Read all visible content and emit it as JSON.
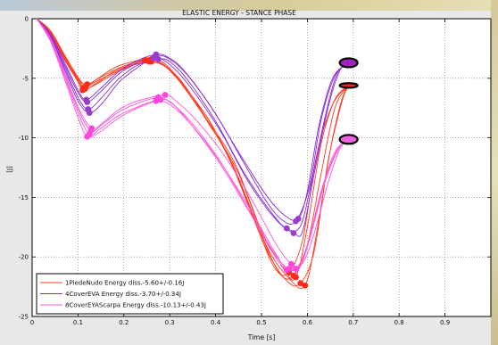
{
  "chart_data": {
    "type": "line",
    "title": "ELASTIC ENERGY - STANCE PHASE",
    "xlabel": "Time [s]",
    "ylabel": "[J]",
    "xlim": [
      0,
      1.0
    ],
    "ylim": [
      -25,
      0
    ],
    "xticks": [
      0,
      0.1,
      0.2,
      0.3,
      0.4,
      0.5,
      0.6,
      0.7,
      0.8,
      0.9
    ],
    "xtick_labels": [
      "0",
      "0.1",
      "0.2",
      "0.3",
      "0.4",
      "0.5",
      "0.6",
      "0.7",
      "0.8",
      "0.9"
    ],
    "yticks": [
      0,
      -5,
      -10,
      -15,
      -20,
      -25
    ],
    "ytick_labels": [
      "0",
      "-5",
      "-10",
      "-15",
      "-20",
      "-25"
    ],
    "grid": "dotted",
    "legend_position": "bottom-left",
    "series": [
      {
        "name": "1PiedeNudo Energy diss.-5.60+/-0.16J",
        "color": "#ff3b1f",
        "marker_color": "#ff2a1a",
        "end_marker_color": "#ff2020",
        "mean_end": [
          0.69,
          -5.6
        ],
        "trials": [
          [
            [
              0.01,
              0
            ],
            [
              0.04,
              -1.2
            ],
            [
              0.07,
              -3.2
            ],
            [
              0.1,
              -5.0
            ],
            [
              0.115,
              -5.9
            ],
            [
              0.14,
              -5.4
            ],
            [
              0.18,
              -4.4
            ],
            [
              0.22,
              -3.8
            ],
            [
              0.25,
              -3.5
            ],
            [
              0.28,
              -3.7
            ],
            [
              0.32,
              -5.2
            ],
            [
              0.38,
              -8.2
            ],
            [
              0.44,
              -12.5
            ],
            [
              0.5,
              -18.2
            ],
            [
              0.54,
              -21.4
            ],
            [
              0.57,
              -21.6
            ],
            [
              0.6,
              -19.0
            ],
            [
              0.63,
              -13.0
            ],
            [
              0.66,
              -7.5
            ],
            [
              0.69,
              -5.6
            ]
          ],
          [
            [
              0.01,
              0
            ],
            [
              0.04,
              -1.0
            ],
            [
              0.07,
              -3.0
            ],
            [
              0.1,
              -4.9
            ],
            [
              0.118,
              -5.6
            ],
            [
              0.14,
              -5.1
            ],
            [
              0.18,
              -4.1
            ],
            [
              0.22,
              -3.6
            ],
            [
              0.26,
              -3.4
            ],
            [
              0.29,
              -3.8
            ],
            [
              0.33,
              -5.6
            ],
            [
              0.39,
              -8.8
            ],
            [
              0.45,
              -13.5
            ],
            [
              0.51,
              -19.3
            ],
            [
              0.555,
              -22.0
            ],
            [
              0.585,
              -22.2
            ],
            [
              0.615,
              -19.5
            ],
            [
              0.645,
              -12.0
            ],
            [
              0.675,
              -7.0
            ],
            [
              0.69,
              -5.6
            ]
          ],
          [
            [
              0.01,
              0
            ],
            [
              0.04,
              -1.3
            ],
            [
              0.07,
              -3.4
            ],
            [
              0.1,
              -5.3
            ],
            [
              0.11,
              -6.0
            ],
            [
              0.135,
              -5.6
            ],
            [
              0.18,
              -4.6
            ],
            [
              0.22,
              -3.9
            ],
            [
              0.255,
              -3.6
            ],
            [
              0.285,
              -3.9
            ],
            [
              0.32,
              -5.0
            ],
            [
              0.37,
              -7.8
            ],
            [
              0.43,
              -11.8
            ],
            [
              0.49,
              -17.5
            ],
            [
              0.53,
              -21.0
            ],
            [
              0.56,
              -21.3
            ],
            [
              0.59,
              -18.5
            ],
            [
              0.62,
              -11.5
            ],
            [
              0.655,
              -7.2
            ],
            [
              0.69,
              -5.6
            ]
          ],
          [
            [
              0.01,
              0
            ],
            [
              0.04,
              -1.1
            ],
            [
              0.07,
              -3.1
            ],
            [
              0.1,
              -5.1
            ],
            [
              0.12,
              -5.5
            ],
            [
              0.145,
              -5.0
            ],
            [
              0.18,
              -4.3
            ],
            [
              0.22,
              -3.7
            ],
            [
              0.245,
              -3.5
            ],
            [
              0.275,
              -3.6
            ],
            [
              0.31,
              -4.7
            ],
            [
              0.37,
              -7.9
            ],
            [
              0.44,
              -12.0
            ],
            [
              0.5,
              -17.8
            ],
            [
              0.55,
              -21.1
            ],
            [
              0.575,
              -21.7
            ],
            [
              0.6,
              -17.5
            ],
            [
              0.63,
              -10.5
            ],
            [
              0.66,
              -6.8
            ],
            [
              0.69,
              -5.6
            ]
          ],
          [
            [
              0.01,
              0
            ],
            [
              0.04,
              -1.2
            ],
            [
              0.07,
              -3.3
            ],
            [
              0.1,
              -5.2
            ],
            [
              0.112,
              -5.8
            ],
            [
              0.138,
              -5.3
            ],
            [
              0.18,
              -4.5
            ],
            [
              0.22,
              -3.9
            ],
            [
              0.26,
              -3.6
            ],
            [
              0.29,
              -4.0
            ],
            [
              0.33,
              -5.5
            ],
            [
              0.38,
              -8.5
            ],
            [
              0.45,
              -13.0
            ],
            [
              0.51,
              -19.0
            ],
            [
              0.56,
              -21.8
            ],
            [
              0.595,
              -22.4
            ],
            [
              0.62,
              -18.0
            ],
            [
              0.65,
              -11.0
            ],
            [
              0.675,
              -6.8
            ],
            [
              0.69,
              -5.6
            ]
          ]
        ]
      },
      {
        "name": "4CoverEVA Energy diss.-3.70+/-0.34J",
        "color": "#8a2bd6",
        "marker_color": "#9a3bd0",
        "end_marker_color": "#a020c0",
        "mean_end": [
          0.69,
          -3.7
        ],
        "trials": [
          [
            [
              0.01,
              0
            ],
            [
              0.04,
              -1.4
            ],
            [
              0.07,
              -3.8
            ],
            [
              0.1,
              -6.2
            ],
            [
              0.12,
              -7.0
            ],
            [
              0.15,
              -6.1
            ],
            [
              0.19,
              -4.6
            ],
            [
              0.23,
              -3.7
            ],
            [
              0.27,
              -3.1
            ],
            [
              0.3,
              -3.4
            ],
            [
              0.34,
              -4.8
            ],
            [
              0.4,
              -8.0
            ],
            [
              0.46,
              -12.0
            ],
            [
              0.51,
              -15.3
            ],
            [
              0.545,
              -16.9
            ],
            [
              0.575,
              -17.0
            ],
            [
              0.605,
              -14.0
            ],
            [
              0.63,
              -8.5
            ],
            [
              0.66,
              -4.8
            ],
            [
              0.69,
              -3.7
            ]
          ],
          [
            [
              0.01,
              0
            ],
            [
              0.04,
              -1.5
            ],
            [
              0.07,
              -4.0
            ],
            [
              0.1,
              -6.6
            ],
            [
              0.122,
              -7.6
            ],
            [
              0.15,
              -6.7
            ],
            [
              0.19,
              -5.0
            ],
            [
              0.23,
              -3.9
            ],
            [
              0.275,
              -3.4
            ],
            [
              0.3,
              -3.6
            ],
            [
              0.34,
              -5.2
            ],
            [
              0.4,
              -8.6
            ],
            [
              0.46,
              -12.8
            ],
            [
              0.52,
              -16.2
            ],
            [
              0.555,
              -17.6
            ],
            [
              0.585,
              -17.4
            ],
            [
              0.61,
              -13.5
            ],
            [
              0.64,
              -8.0
            ],
            [
              0.665,
              -4.6
            ],
            [
              0.69,
              -3.7
            ]
          ],
          [
            [
              0.01,
              0
            ],
            [
              0.04,
              -1.6
            ],
            [
              0.07,
              -4.2
            ],
            [
              0.1,
              -6.9
            ],
            [
              0.125,
              -7.9
            ],
            [
              0.155,
              -7.0
            ],
            [
              0.19,
              -5.3
            ],
            [
              0.23,
              -4.1
            ],
            [
              0.265,
              -3.3
            ],
            [
              0.295,
              -3.7
            ],
            [
              0.34,
              -5.5
            ],
            [
              0.41,
              -9.4
            ],
            [
              0.47,
              -13.6
            ],
            [
              0.53,
              -16.8
            ],
            [
              0.57,
              -18.0
            ],
            [
              0.59,
              -17.8
            ],
            [
              0.615,
              -13.0
            ],
            [
              0.645,
              -7.5
            ],
            [
              0.67,
              -4.4
            ],
            [
              0.69,
              -3.7
            ]
          ],
          [
            [
              0.01,
              0
            ],
            [
              0.04,
              -1.3
            ],
            [
              0.07,
              -3.6
            ],
            [
              0.1,
              -6.0
            ],
            [
              0.118,
              -6.8
            ],
            [
              0.148,
              -5.9
            ],
            [
              0.19,
              -4.4
            ],
            [
              0.23,
              -3.5
            ],
            [
              0.27,
              -3.0
            ],
            [
              0.295,
              -3.2
            ],
            [
              0.33,
              -4.3
            ],
            [
              0.39,
              -7.4
            ],
            [
              0.45,
              -11.2
            ],
            [
              0.51,
              -14.8
            ],
            [
              0.55,
              -16.5
            ],
            [
              0.58,
              -16.8
            ],
            [
              0.6,
              -14.5
            ],
            [
              0.625,
              -9.0
            ],
            [
              0.655,
              -5.0
            ],
            [
              0.69,
              -3.7
            ]
          ]
        ]
      },
      {
        "name": "8CoverEYAScarpa Energy diss.-10.13+/-0.43J",
        "color": "#ff55dd",
        "marker_color": "#ff44e0",
        "end_marker_color": "#f060e0",
        "mean_end": [
          0.69,
          -10.13
        ],
        "trials": [
          [
            [
              0.01,
              0
            ],
            [
              0.04,
              -1.8
            ],
            [
              0.07,
              -4.8
            ],
            [
              0.1,
              -7.9
            ],
            [
              0.125,
              -9.7
            ],
            [
              0.15,
              -9.2
            ],
            [
              0.19,
              -8.1
            ],
            [
              0.23,
              -7.4
            ],
            [
              0.27,
              -6.9
            ],
            [
              0.3,
              -7.2
            ],
            [
              0.34,
              -8.6
            ],
            [
              0.4,
              -11.5
            ],
            [
              0.46,
              -15.0
            ],
            [
              0.52,
              -19.0
            ],
            [
              0.55,
              -20.8
            ],
            [
              0.575,
              -21.0
            ],
            [
              0.6,
              -19.0
            ],
            [
              0.63,
              -14.5
            ],
            [
              0.66,
              -11.2
            ],
            [
              0.69,
              -10.13
            ]
          ],
          [
            [
              0.01,
              0
            ],
            [
              0.04,
              -1.7
            ],
            [
              0.07,
              -4.6
            ],
            [
              0.1,
              -7.6
            ],
            [
              0.128,
              -9.4
            ],
            [
              0.152,
              -8.9
            ],
            [
              0.19,
              -7.8
            ],
            [
              0.23,
              -7.1
            ],
            [
              0.275,
              -6.6
            ],
            [
              0.3,
              -7.0
            ],
            [
              0.34,
              -8.4
            ],
            [
              0.4,
              -11.4
            ],
            [
              0.46,
              -15.2
            ],
            [
              0.52,
              -19.4
            ],
            [
              0.555,
              -21.1
            ],
            [
              0.58,
              -21.1
            ],
            [
              0.605,
              -18.5
            ],
            [
              0.635,
              -14.0
            ],
            [
              0.665,
              -11.0
            ],
            [
              0.69,
              -10.13
            ]
          ],
          [
            [
              0.01,
              0
            ],
            [
              0.04,
              -1.9
            ],
            [
              0.07,
              -5.0
            ],
            [
              0.1,
              -8.3
            ],
            [
              0.12,
              -9.9
            ],
            [
              0.148,
              -9.5
            ],
            [
              0.19,
              -8.3
            ],
            [
              0.23,
              -7.5
            ],
            [
              0.28,
              -6.8
            ],
            [
              0.305,
              -7.1
            ],
            [
              0.345,
              -8.8
            ],
            [
              0.41,
              -12.2
            ],
            [
              0.47,
              -16.0
            ],
            [
              0.53,
              -19.8
            ],
            [
              0.56,
              -21.0
            ],
            [
              0.585,
              -20.7
            ],
            [
              0.61,
              -17.8
            ],
            [
              0.64,
              -13.5
            ],
            [
              0.67,
              -10.8
            ],
            [
              0.69,
              -10.13
            ]
          ],
          [
            [
              0.01,
              0
            ],
            [
              0.04,
              -1.6
            ],
            [
              0.07,
              -4.4
            ],
            [
              0.1,
              -7.4
            ],
            [
              0.13,
              -9.2
            ],
            [
              0.155,
              -8.7
            ],
            [
              0.19,
              -7.6
            ],
            [
              0.23,
              -6.9
            ],
            [
              0.29,
              -6.4
            ],
            [
              0.31,
              -6.8
            ],
            [
              0.35,
              -8.2
            ],
            [
              0.41,
              -11.0
            ],
            [
              0.47,
              -14.6
            ],
            [
              0.53,
              -18.8
            ],
            [
              0.565,
              -20.6
            ],
            [
              0.59,
              -20.5
            ],
            [
              0.615,
              -18.0
            ],
            [
              0.645,
              -13.8
            ],
            [
              0.67,
              -11.0
            ],
            [
              0.69,
              -10.13
            ]
          ]
        ]
      }
    ]
  }
}
